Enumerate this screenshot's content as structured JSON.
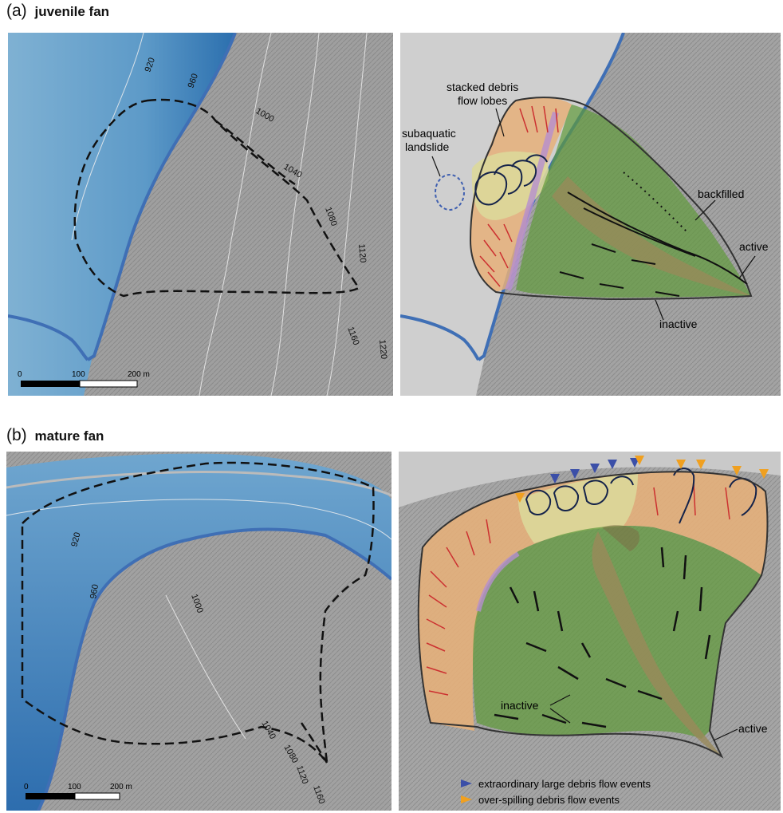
{
  "panel_a": {
    "letter": "(a)",
    "title": "juvenile fan",
    "contours": [
      "920",
      "960",
      "1000",
      "1040",
      "1080",
      "1120",
      "1160",
      "1220"
    ],
    "scale": {
      "ticks": [
        "0",
        "100",
        "200 m"
      ]
    },
    "annotations": {
      "stacked": "stacked debris",
      "stacked2": "flow lobes",
      "subaquatic": "subaquatic",
      "subaquatic2": "landslide",
      "backfilled": "backfilled",
      "active": "active",
      "inactive": "inactive"
    }
  },
  "panel_b": {
    "letter": "(b)",
    "title": "mature fan",
    "contours": [
      "920",
      "960",
      "1000",
      "1040",
      "1080",
      "1120",
      "1160"
    ],
    "scale": {
      "ticks": [
        "0",
        "100",
        "200 m"
      ]
    },
    "annotations": {
      "inactive": "inactive",
      "active": "active"
    },
    "legend": [
      {
        "label": "extraordinary large debris flow events",
        "color": "#3b4fa8"
      },
      {
        "label": "over-spilling debris flow events",
        "color": "#f0a020"
      }
    ]
  },
  "colors": {
    "lake": "#4b8cc0",
    "shore": "#3f6fb5",
    "fan_green": "#5f9a3a",
    "slope_orange": "#e6b07a",
    "lobe_yellow": "#dcd89a",
    "channel_brown": "#9a8a5a",
    "purple": "#b58fcf",
    "gullies_red": "#cc3030"
  }
}
